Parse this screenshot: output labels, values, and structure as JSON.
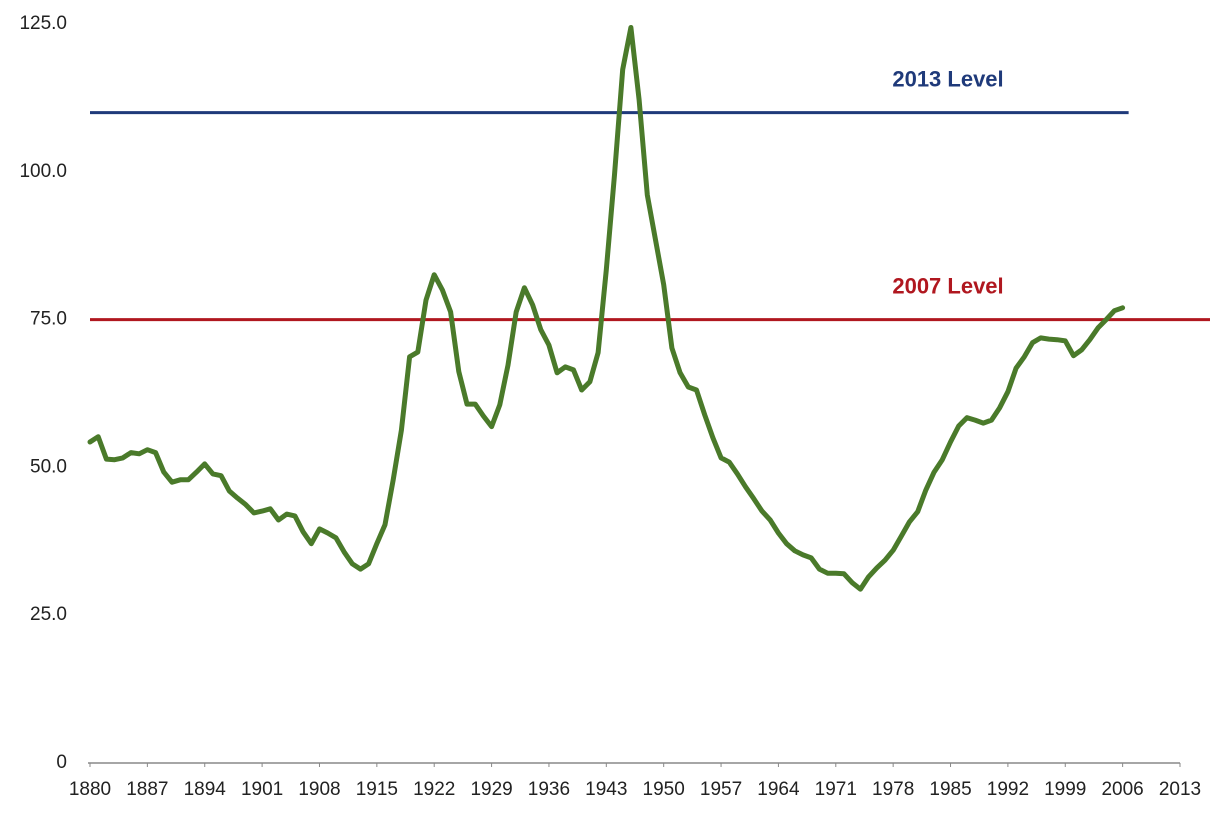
{
  "chart_data": {
    "type": "line",
    "x": [
      1880,
      1881,
      1882,
      1883,
      1884,
      1885,
      1886,
      1887,
      1888,
      1889,
      1890,
      1891,
      1892,
      1893,
      1894,
      1895,
      1896,
      1897,
      1898,
      1899,
      1900,
      1901,
      1902,
      1903,
      1904,
      1905,
      1906,
      1907,
      1908,
      1909,
      1910,
      1911,
      1912,
      1913,
      1914,
      1915,
      1916,
      1917,
      1918,
      1919,
      1920,
      1921,
      1922,
      1923,
      1924,
      1925,
      1926,
      1927,
      1928,
      1929,
      1930,
      1931,
      1932,
      1933,
      1934,
      1935,
      1936,
      1937,
      1938,
      1939,
      1940,
      1941,
      1942,
      1943,
      1944,
      1945,
      1946,
      1947,
      1948,
      1949,
      1950,
      1951,
      1952,
      1953,
      1954,
      1955,
      1956,
      1957,
      1958,
      1959,
      1960,
      1961,
      1962,
      1963,
      1964,
      1965,
      1966,
      1967,
      1968,
      1969,
      1970,
      1971,
      1972,
      1973,
      1974,
      1975,
      1976,
      1977,
      1978,
      1979,
      1980,
      1981,
      1982,
      1983,
      1984,
      1985,
      1986,
      1987,
      1988,
      1989,
      1990,
      1991,
      1992,
      1993,
      1994,
      1995,
      1996,
      1997,
      1998,
      1999,
      2000,
      2001,
      2002,
      2003,
      2004,
      2005,
      2006
    ],
    "series": [
      {
        "color": "#4a7a2a",
        "values": [
          54.3,
          55.2,
          51.4,
          51.3,
          51.6,
          52.5,
          52.3,
          53,
          52.5,
          49.2,
          47.5,
          47.9,
          47.9,
          49.2,
          50.6,
          48.9,
          48.6,
          46,
          44.8,
          43.7,
          42.3,
          42.6,
          43,
          41.1,
          42.1,
          41.8,
          39.1,
          37.1,
          39.6,
          38.9,
          38.1,
          35.7,
          33.7,
          32.8,
          33.7,
          37.1,
          40.3,
          47.9,
          56.3,
          68.7,
          69.5,
          78.3,
          82.6,
          80,
          76.3,
          66.2,
          60.7,
          60.7,
          58.7,
          56.9,
          60.6,
          67.3,
          76.3,
          80.4,
          77.5,
          73.3,
          70.7,
          66,
          67,
          66.5,
          63.1,
          64.5,
          69.4,
          83.4,
          99.5,
          117.3,
          124.4,
          112.2,
          96.1,
          88.5,
          80.9,
          70.2,
          66,
          63.6,
          63.1,
          58.9,
          55,
          51.6,
          50.9,
          48.9,
          46.7,
          44.7,
          42.6,
          41.1,
          38.9,
          37.1,
          35.9,
          35.2,
          34.7,
          32.8,
          32.1,
          32.1,
          32,
          30.5,
          29.4,
          31.5,
          33,
          34.3,
          36,
          38.4,
          40.8,
          42.5,
          46.2,
          49.2,
          51.3,
          54.3,
          57,
          58.4,
          58,
          57.5,
          58,
          60.1,
          62.8,
          66.8,
          68.7,
          71.1,
          71.9,
          71.7,
          71.6,
          71.4,
          68.9,
          69.9,
          71.6,
          73.6,
          75,
          76.5,
          77
        ]
      }
    ],
    "reference_lines": [
      {
        "label": "2013 Level",
        "value": 110,
        "color": "#1f3a7a"
      },
      {
        "label": "2007 Level",
        "value": 75,
        "color": "#b0171f"
      }
    ],
    "xlim": [
      1880,
      2013
    ],
    "xticks": [
      1880,
      1887,
      1894,
      1901,
      1908,
      1915,
      1922,
      1929,
      1936,
      1943,
      1950,
      1957,
      1964,
      1971,
      1978,
      1985,
      1992,
      1999,
      2006,
      2013
    ],
    "ylim": [
      0,
      125
    ],
    "yticks": [
      0,
      {
        "value": 25,
        "label": "25.0"
      },
      {
        "value": 50,
        "label": "50.0"
      },
      {
        "value": 75,
        "label": "75.0"
      },
      {
        "value": 100,
        "label": "100.0"
      },
      {
        "value": 125,
        "label": "125.0"
      }
    ],
    "grid": false
  }
}
